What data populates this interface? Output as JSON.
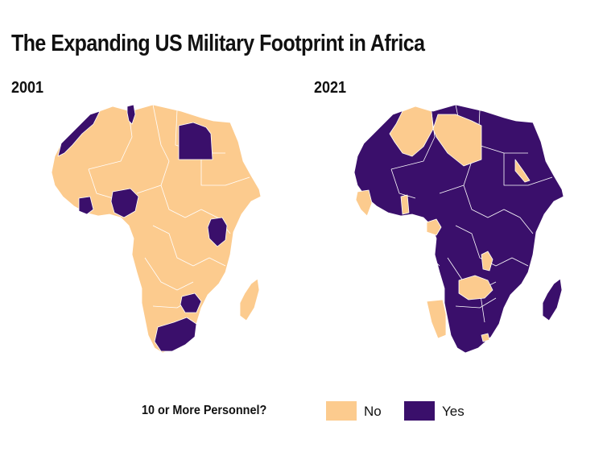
{
  "title": "The Expanding US Military Footprint in Africa",
  "maps": [
    {
      "year_label": "2001"
    },
    {
      "year_label": "2021"
    }
  ],
  "legend": {
    "title": "10 or More Personnel?",
    "items": [
      {
        "label": "No",
        "color": "#FCCB8E"
      },
      {
        "label": "Yes",
        "color": "#3A0F6B"
      }
    ]
  },
  "colors": {
    "no": "#FCCB8E",
    "yes": "#3A0F6B"
  }
}
